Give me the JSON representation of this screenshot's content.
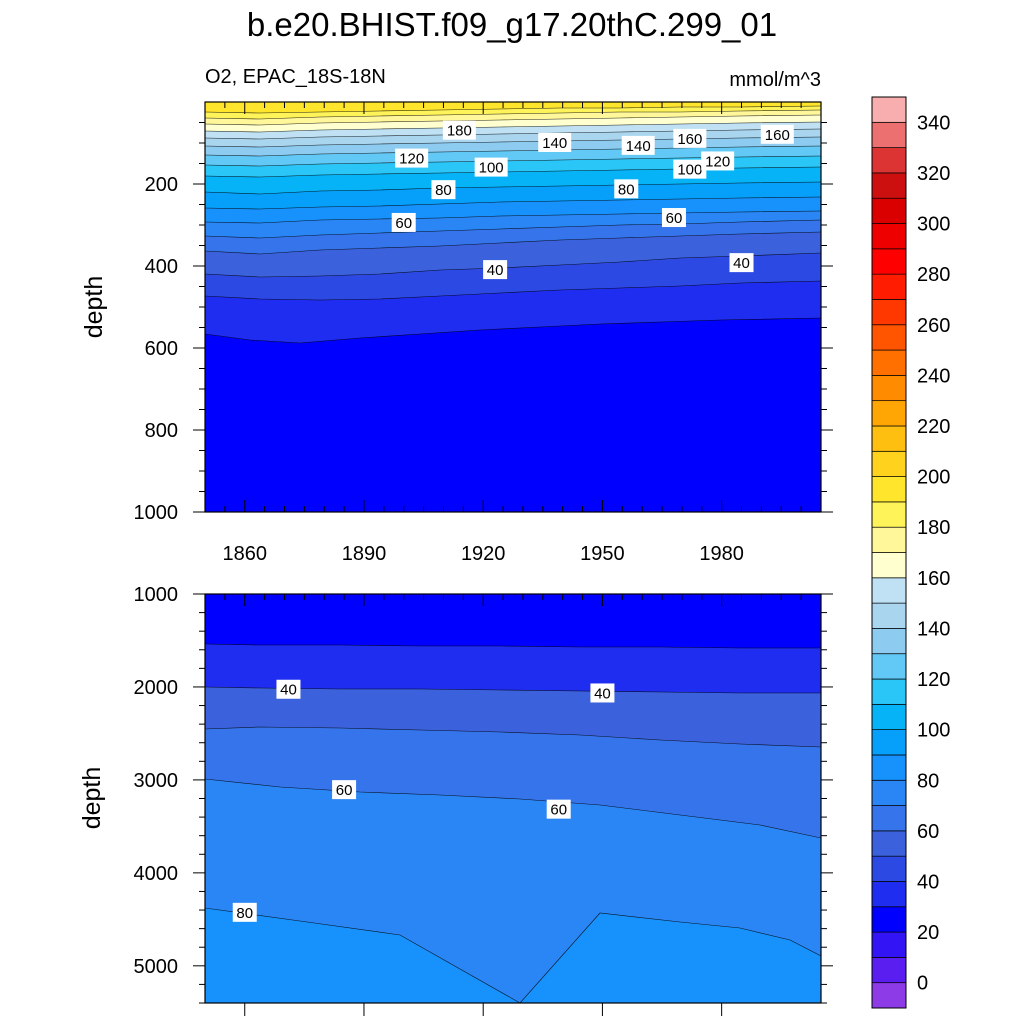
{
  "title": "b.e20.BHIST.f09_g17.20thC.299_01",
  "subtitle_left": "O2, EPAC_18S-18N",
  "subtitle_right": "mmol/m^3",
  "colors": {
    "scale": [
      "#8d3be6",
      "#5a1ef0",
      "#3214f5",
      "#0000ff",
      "#1f2df1",
      "#2d49e4",
      "#3b62dc",
      "#3574eb",
      "#2a86f5",
      "#1791fb",
      "#06a0fb",
      "#06b3f6",
      "#2bc6f8",
      "#62c8f5",
      "#8dcbf0",
      "#a9d5ef",
      "#bfe1f3",
      "#ffffd0",
      "#fff799",
      "#fff35a",
      "#ffe52b",
      "#ffd21e",
      "#ffbf11",
      "#ffa604",
      "#ff8c00",
      "#ff7000",
      "#ff5400",
      "#ff3800",
      "#ff1c00",
      "#ff0000",
      "#ef0000",
      "#db0000",
      "#cc1010",
      "#dc3333",
      "#ec7070",
      "#f8aeae"
    ]
  },
  "chart_data": [
    {
      "type": "contour",
      "panel": "upper",
      "variable": "O2",
      "region": "EPAC_18S-18N",
      "units": "mmol/m^3",
      "ylabel": "depth",
      "xlabel": "",
      "xlim": [
        1850,
        2005
      ],
      "ylim": [
        1000,
        0
      ],
      "x_ticks": [
        1860,
        1890,
        1920,
        1950,
        1980
      ],
      "y_ticks": [
        200,
        400,
        600,
        800,
        1000
      ],
      "contour_levels_approx_depth": [
        {
          "value": 180,
          "depth": 70
        },
        {
          "value": 160,
          "depth": 95
        },
        {
          "value": 140,
          "depth": 110
        },
        {
          "value": 120,
          "depth": 135
        },
        {
          "value": 100,
          "depth": 165
        },
        {
          "value": 80,
          "depth": 215
        },
        {
          "value": 60,
          "depth": 290
        },
        {
          "value": 40,
          "depth": 395
        },
        {
          "value": 20,
          "depth": 560
        }
      ],
      "contour_labels": [
        {
          "text": "180",
          "x": 1914,
          "depth": 70
        },
        {
          "text": "140",
          "x": 1938,
          "depth": 100
        },
        {
          "text": "140",
          "x": 1959,
          "depth": 107
        },
        {
          "text": "160",
          "x": 1972,
          "depth": 90
        },
        {
          "text": "160",
          "x": 1994,
          "depth": 80
        },
        {
          "text": "120",
          "x": 1902,
          "depth": 138
        },
        {
          "text": "100",
          "x": 1922,
          "depth": 160
        },
        {
          "text": "100",
          "x": 1972,
          "depth": 165
        },
        {
          "text": "120",
          "x": 1979,
          "depth": 145
        },
        {
          "text": "80",
          "x": 1910,
          "depth": 215
        },
        {
          "text": "80",
          "x": 1956,
          "depth": 213
        },
        {
          "text": "60",
          "x": 1900,
          "depth": 295
        },
        {
          "text": "60",
          "x": 1968,
          "depth": 283
        },
        {
          "text": "40",
          "x": 1923,
          "depth": 410
        },
        {
          "text": "40",
          "x": 1985,
          "depth": 393
        }
      ]
    },
    {
      "type": "contour",
      "panel": "lower",
      "ylabel": "depth",
      "xlabel": "",
      "xlim": [
        1850,
        2005
      ],
      "ylim": [
        5400,
        1000
      ],
      "y_ticks": [
        1000,
        2000,
        3000,
        4000,
        5000
      ],
      "contour_labels": [
        {
          "text": "40",
          "x": 1871,
          "depth": 2030
        },
        {
          "text": "40",
          "x": 1950,
          "depth": 2070
        },
        {
          "text": "60",
          "x": 1885,
          "depth": 3110
        },
        {
          "text": "60",
          "x": 1939,
          "depth": 3320
        },
        {
          "text": "80",
          "x": 1860,
          "depth": 4430
        }
      ]
    },
    {
      "type": "colorbar",
      "levels": [
        0,
        10,
        20,
        30,
        40,
        50,
        60,
        70,
        80,
        90,
        100,
        110,
        120,
        130,
        140,
        150,
        160,
        170,
        180,
        190,
        200,
        210,
        220,
        230,
        240,
        250,
        260,
        270,
        280,
        290,
        300,
        310,
        320,
        330,
        340,
        350
      ],
      "tick_labels": [
        "0",
        "20",
        "40",
        "60",
        "80",
        "100",
        "120",
        "140",
        "160",
        "180",
        "200",
        "220",
        "240",
        "260",
        "280",
        "300",
        "320",
        "340"
      ]
    }
  ]
}
